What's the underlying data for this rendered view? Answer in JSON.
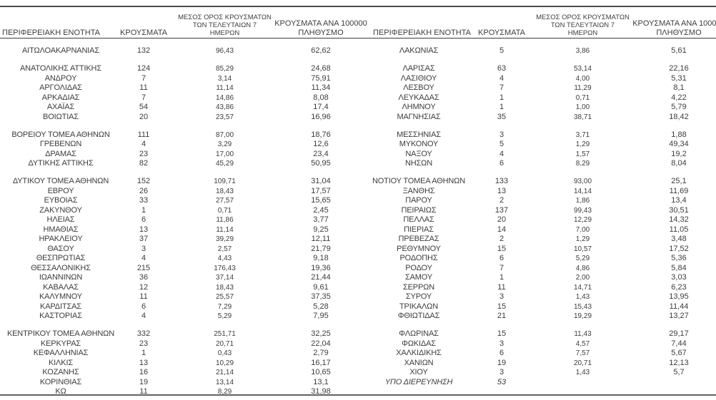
{
  "page": {
    "background": "#ffffff",
    "text_color": "#3d3d3d",
    "rule_top_color": "#4a4a4a",
    "rule_header_color": "#3e3e3e",
    "rule_bottom_color": "#5e6166"
  },
  "column_headers": {
    "region": "ΠΕΡΙΦΕΡΕΙΑΚΗ ΕΝΟΤΗΤΑ",
    "cases": "ΚΡΟΥΣΜΑΤΑ",
    "avg7_lines": [
      "ΜΕΣΟΣ ΟΡΟΣ ΚΡΟΥΣΜΑΤΩΝ",
      "ΤΩΝ ΤΕΛΕΥΤΑΙΩΝ 7",
      "ΗΜΕΡΩΝ"
    ],
    "per100k_lines": [
      "ΚΡΟΥΣΜΑΤΑ ΑΝΑ 100000",
      "ΠΛΗΘΥΣΜΟ"
    ]
  },
  "tables": [
    {
      "id": "left",
      "rows": [
        {
          "region": "ΑΙΤΩΛΟΑΚΑΡΝΑΝΙΑΣ",
          "cases": "132",
          "avg7": "96,43",
          "per100k": "62,62",
          "gap_before": false,
          "italic": false
        },
        {
          "region": "ΑΝΑΤΟΛΙΚΗΣ ΑΤΤΙΚΗΣ",
          "cases": "124",
          "avg7": "85,29",
          "per100k": "24,68",
          "gap_before": true,
          "italic": false
        },
        {
          "region": "ΑΝΔΡΟΥ",
          "cases": "7",
          "avg7": "3,14",
          "per100k": "75,91",
          "gap_before": false,
          "italic": false
        },
        {
          "region": "ΑΡΓΟΛΙΔΑΣ",
          "cases": "11",
          "avg7": "11,14",
          "per100k": "11,34",
          "gap_before": false,
          "italic": false
        },
        {
          "region": "ΑΡΚΑΔΙΑΣ",
          "cases": "7",
          "avg7": "14,86",
          "per100k": "8,08",
          "gap_before": false,
          "italic": false
        },
        {
          "region": "ΑΧΑΪΑΣ",
          "cases": "54",
          "avg7": "43,86",
          "per100k": "17,4",
          "gap_before": false,
          "italic": false
        },
        {
          "region": "ΒΟΙΩΤΙΑΣ",
          "cases": "20",
          "avg7": "23,57",
          "per100k": "16,96",
          "gap_before": false,
          "italic": false
        },
        {
          "region": "ΒΟΡΕΙΟΥ ΤΟΜΕΑ ΑΘΗΝΩΝ",
          "cases": "111",
          "avg7": "87,00",
          "per100k": "18,76",
          "gap_before": true,
          "italic": false
        },
        {
          "region": "ΓΡΕΒΕΝΩΝ",
          "cases": "4",
          "avg7": "3,29",
          "per100k": "12,6",
          "gap_before": false,
          "italic": false
        },
        {
          "region": "ΔΡΑΜΑΣ",
          "cases": "23",
          "avg7": "17,00",
          "per100k": "23,4",
          "gap_before": false,
          "italic": false
        },
        {
          "region": "ΔΥΤΙΚΗΣ ΑΤΤΙΚΗΣ",
          "cases": "82",
          "avg7": "45,29",
          "per100k": "50,95",
          "gap_before": false,
          "italic": false
        },
        {
          "region": "ΔΥΤΙΚΟΥ ΤΟΜΕΑ ΑΘΗΝΩΝ",
          "cases": "152",
          "avg7": "109,71",
          "per100k": "31,04",
          "gap_before": true,
          "italic": false
        },
        {
          "region": "ΕΒΡΟΥ",
          "cases": "26",
          "avg7": "18,43",
          "per100k": "17,57",
          "gap_before": false,
          "italic": false
        },
        {
          "region": "ΕΥΒΟΙΑΣ",
          "cases": "33",
          "avg7": "27,57",
          "per100k": "15,65",
          "gap_before": false,
          "italic": false
        },
        {
          "region": "ΖΑΚΥΝΘΟΥ",
          "cases": "1",
          "avg7": "0,71",
          "per100k": "2,45",
          "gap_before": false,
          "italic": false
        },
        {
          "region": "ΗΛΕΙΑΣ",
          "cases": "6",
          "avg7": "11,86",
          "per100k": "3,77",
          "gap_before": false,
          "italic": false
        },
        {
          "region": "ΗΜΑΘΙΑΣ",
          "cases": "13",
          "avg7": "11,14",
          "per100k": "9,25",
          "gap_before": false,
          "italic": false
        },
        {
          "region": "ΗΡΑΚΛΕΙΟΥ",
          "cases": "37",
          "avg7": "39,29",
          "per100k": "12,11",
          "gap_before": false,
          "italic": false
        },
        {
          "region": "ΘΑΣΟΥ",
          "cases": "3",
          "avg7": "2,57",
          "per100k": "21,79",
          "gap_before": false,
          "italic": false
        },
        {
          "region": "ΘΕΣΠΡΩΤΙΑΣ",
          "cases": "4",
          "avg7": "4,43",
          "per100k": "9,18",
          "gap_before": false,
          "italic": false
        },
        {
          "region": "ΘΕΣΣΑΛΟΝΙΚΗΣ",
          "cases": "215",
          "avg7": "176,43",
          "per100k": "19,36",
          "gap_before": false,
          "italic": false
        },
        {
          "region": "ΙΩΑΝΝΙΝΩΝ",
          "cases": "36",
          "avg7": "37,14",
          "per100k": "21,44",
          "gap_before": false,
          "italic": false
        },
        {
          "region": "ΚΑΒΑΛΑΣ",
          "cases": "12",
          "avg7": "18,43",
          "per100k": "9,61",
          "gap_before": false,
          "italic": false
        },
        {
          "region": "ΚΑΛΥΜΝΟΥ",
          "cases": "11",
          "avg7": "25,57",
          "per100k": "37,35",
          "gap_before": false,
          "italic": false
        },
        {
          "region": "ΚΑΡΔΙΤΣΑΣ",
          "cases": "6",
          "avg7": "7,29",
          "per100k": "5,28",
          "gap_before": false,
          "italic": false
        },
        {
          "region": "ΚΑΣΤΟΡΙΑΣ",
          "cases": "4",
          "avg7": "5,29",
          "per100k": "7,95",
          "gap_before": false,
          "italic": false
        },
        {
          "region": "ΚΕΝΤΡΙΚΟΥ ΤΟΜΕΑ ΑΘΗΝΩΝ",
          "cases": "332",
          "avg7": "251,71",
          "per100k": "32,25",
          "gap_before": true,
          "italic": false
        },
        {
          "region": "ΚΕΡΚΥΡΑΣ",
          "cases": "23",
          "avg7": "20,71",
          "per100k": "22,04",
          "gap_before": false,
          "italic": false
        },
        {
          "region": "ΚΕΦΑΛΛΗΝΙΑΣ",
          "cases": "1",
          "avg7": "0,43",
          "per100k": "2,79",
          "gap_before": false,
          "italic": false
        },
        {
          "region": "ΚΙΛΚΙΣ",
          "cases": "13",
          "avg7": "10,29",
          "per100k": "16,17",
          "gap_before": false,
          "italic": false
        },
        {
          "region": "ΚΟΖΑΝΗΣ",
          "cases": "16",
          "avg7": "21,14",
          "per100k": "10,65",
          "gap_before": false,
          "italic": false
        },
        {
          "region": "ΚΟΡΙΝΘΙΑΣ",
          "cases": "19",
          "avg7": "13,14",
          "per100k": "13,1",
          "gap_before": false,
          "italic": false
        },
        {
          "region": "ΚΩ",
          "cases": "11",
          "avg7": "8,29",
          "per100k": "31,98",
          "gap_before": false,
          "italic": false
        }
      ]
    },
    {
      "id": "right",
      "rows": [
        {
          "region": "ΛΑΚΩΝΙΑΣ",
          "cases": "5",
          "avg7": "3,86",
          "per100k": "5,61",
          "gap_before": false,
          "italic": false
        },
        {
          "region": "ΛΑΡΙΣΑΣ",
          "cases": "63",
          "avg7": "53,14",
          "per100k": "22,16",
          "gap_before": true,
          "italic": false
        },
        {
          "region": "ΛΑΣΙΘΙΟΥ",
          "cases": "4",
          "avg7": "4,00",
          "per100k": "5,31",
          "gap_before": false,
          "italic": false
        },
        {
          "region": "ΛΕΣΒΟΥ",
          "cases": "7",
          "avg7": "11,29",
          "per100k": "8,1",
          "gap_before": false,
          "italic": false
        },
        {
          "region": "ΛΕΥΚΑΔΑΣ",
          "cases": "1",
          "avg7": "0,71",
          "per100k": "4,22",
          "gap_before": false,
          "italic": false
        },
        {
          "region": "ΛΗΜΝΟΥ",
          "cases": "1",
          "avg7": "1,00",
          "per100k": "5,79",
          "gap_before": false,
          "italic": false
        },
        {
          "region": "ΜΑΓΝΗΣΙΑΣ",
          "cases": "35",
          "avg7": "38,71",
          "per100k": "18,42",
          "gap_before": false,
          "italic": false
        },
        {
          "region": "ΜΕΣΣΗΝΙΑΣ",
          "cases": "3",
          "avg7": "3,71",
          "per100k": "1,88",
          "gap_before": true,
          "italic": false
        },
        {
          "region": "ΜΥΚΟΝΟΥ",
          "cases": "5",
          "avg7": "1,29",
          "per100k": "49,34",
          "gap_before": false,
          "italic": false
        },
        {
          "region": "ΝΑΞΟΥ",
          "cases": "4",
          "avg7": "1,57",
          "per100k": "19,2",
          "gap_before": false,
          "italic": false
        },
        {
          "region": "ΝΗΣΩΝ",
          "cases": "6",
          "avg7": "8,29",
          "per100k": "8,04",
          "gap_before": false,
          "italic": false
        },
        {
          "region": "ΝΟΤΙΟΥ ΤΟΜΕΑ ΑΘΗΝΩΝ",
          "cases": "133",
          "avg7": "93,00",
          "per100k": "25,1",
          "gap_before": true,
          "italic": false
        },
        {
          "region": "ΞΑΝΘΗΣ",
          "cases": "13",
          "avg7": "14,14",
          "per100k": "11,69",
          "gap_before": false,
          "italic": false
        },
        {
          "region": "ΠΑΡΟΥ",
          "cases": "2",
          "avg7": "1,86",
          "per100k": "13,4",
          "gap_before": false,
          "italic": false
        },
        {
          "region": "ΠΕΙΡΑΙΩΣ",
          "cases": "137",
          "avg7": "99,43",
          "per100k": "30,51",
          "gap_before": false,
          "italic": false
        },
        {
          "region": "ΠΕΛΛΑΣ",
          "cases": "20",
          "avg7": "12,29",
          "per100k": "14,32",
          "gap_before": false,
          "italic": false
        },
        {
          "region": "ΠΙΕΡΙΑΣ",
          "cases": "14",
          "avg7": "7,00",
          "per100k": "11,05",
          "gap_before": false,
          "italic": false
        },
        {
          "region": "ΠΡΕΒΕΖΑΣ",
          "cases": "2",
          "avg7": "1,29",
          "per100k": "3,48",
          "gap_before": false,
          "italic": false
        },
        {
          "region": "ΡΕΘΥΜΝΟΥ",
          "cases": "15",
          "avg7": "10,57",
          "per100k": "17,52",
          "gap_before": false,
          "italic": false
        },
        {
          "region": "ΡΟΔΟΠΗΣ",
          "cases": "6",
          "avg7": "5,29",
          "per100k": "5,36",
          "gap_before": false,
          "italic": false
        },
        {
          "region": "ΡΟΔΟΥ",
          "cases": "7",
          "avg7": "4,86",
          "per100k": "5,84",
          "gap_before": false,
          "italic": false
        },
        {
          "region": "ΣΑΜΟΥ",
          "cases": "1",
          "avg7": "2,00",
          "per100k": "3,03",
          "gap_before": false,
          "italic": false
        },
        {
          "region": "ΣΕΡΡΩΝ",
          "cases": "11",
          "avg7": "14,71",
          "per100k": "6,23",
          "gap_before": false,
          "italic": false
        },
        {
          "region": "ΣΥΡΟΥ",
          "cases": "3",
          "avg7": "1,43",
          "per100k": "13,95",
          "gap_before": false,
          "italic": false
        },
        {
          "region": "ΤΡΙΚΑΛΩΝ",
          "cases": "15",
          "avg7": "15,43",
          "per100k": "11,44",
          "gap_before": false,
          "italic": false
        },
        {
          "region": "ΦΘΙΩΤΙΔΑΣ",
          "cases": "21",
          "avg7": "19,29",
          "per100k": "13,27",
          "gap_before": false,
          "italic": false
        },
        {
          "region": "ΦΛΩΡΙΝΑΣ",
          "cases": "15",
          "avg7": "11,43",
          "per100k": "29,17",
          "gap_before": true,
          "italic": false
        },
        {
          "region": "ΦΩΚΙΔΑΣ",
          "cases": "3",
          "avg7": "4,57",
          "per100k": "7,44",
          "gap_before": false,
          "italic": false
        },
        {
          "region": "ΧΑΛΚΙΔΙΚΗΣ",
          "cases": "6",
          "avg7": "7,57",
          "per100k": "5,67",
          "gap_before": false,
          "italic": false
        },
        {
          "region": "ΧΑΝΙΩΝ",
          "cases": "19",
          "avg7": "20,71",
          "per100k": "12,13",
          "gap_before": false,
          "italic": false
        },
        {
          "region": "ΧΙΟΥ",
          "cases": "3",
          "avg7": "1,43",
          "per100k": "5,7",
          "gap_before": false,
          "italic": false
        },
        {
          "region": "ΥΠΟ ΔΙΕΡΕΥΝΗΣΗ",
          "cases": "53",
          "avg7": "",
          "per100k": "",
          "gap_before": false,
          "italic": true
        }
      ]
    }
  ]
}
